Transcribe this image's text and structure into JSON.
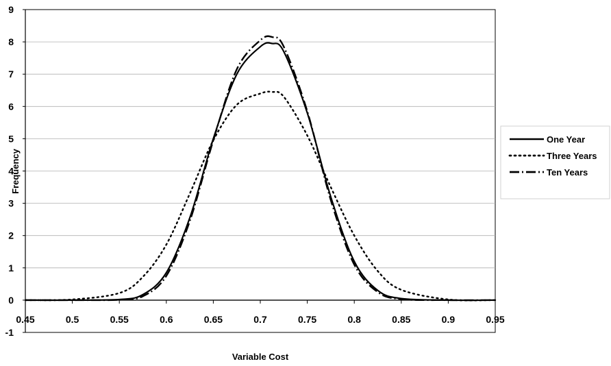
{
  "chart_data": {
    "type": "line",
    "title": "",
    "xlabel": "Variable Cost",
    "ylabel": "Frequency",
    "xlim": [
      0.45,
      0.95
    ],
    "ylim": [
      -1,
      9
    ],
    "x_ticks": [
      "0.45",
      "0.5",
      "0.55",
      "0.6",
      "0.65",
      "0.7",
      "0.75",
      "0.8",
      "0.85",
      "0.9",
      "0.95"
    ],
    "y_ticks": [
      "-1",
      "0",
      "1",
      "2",
      "3",
      "4",
      "5",
      "6",
      "7",
      "8",
      "9"
    ],
    "grid": "horizontal",
    "legend_position": "right",
    "x": [
      0.45,
      0.5,
      0.55,
      0.575,
      0.6,
      0.625,
      0.65,
      0.675,
      0.7,
      0.7125,
      0.725,
      0.75,
      0.775,
      0.8,
      0.825,
      0.85,
      0.9,
      0.95
    ],
    "series": [
      {
        "name": "One Year",
        "style": "solid",
        "values": [
          0.0,
          0.0,
          0.02,
          0.17,
          0.85,
          2.55,
          5.0,
          7.0,
          7.85,
          7.95,
          7.7,
          5.8,
          3.2,
          1.2,
          0.3,
          0.05,
          0.0,
          0.0
        ]
      },
      {
        "name": "Three Years",
        "style": "dotted",
        "values": [
          0.0,
          0.02,
          0.22,
          0.72,
          1.72,
          3.3,
          4.95,
          6.05,
          6.4,
          6.45,
          6.3,
          5.1,
          3.5,
          2.0,
          0.9,
          0.32,
          0.02,
          0.0
        ]
      },
      {
        "name": "Ten Years",
        "style": "dashed",
        "values": [
          0.0,
          0.0,
          0.01,
          0.12,
          0.75,
          2.45,
          4.95,
          7.15,
          8.05,
          8.15,
          7.85,
          5.85,
          3.1,
          1.1,
          0.25,
          0.03,
          0.0,
          0.0
        ]
      }
    ]
  }
}
